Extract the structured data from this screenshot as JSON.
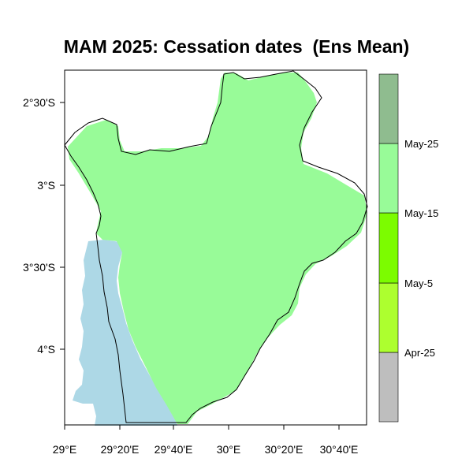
{
  "title": "MAM 2025: Cessation dates  (Ens Mean)",
  "map": {
    "x_ticks": [
      "29°E",
      "29°20'E",
      "29°40'E",
      "30°E",
      "30°20'E",
      "30°40'E"
    ],
    "y_ticks": [
      "2°30'S",
      "3°S",
      "3°30'S",
      "4°S"
    ],
    "land_color": "#98fb98",
    "lake_color": "#add8e6",
    "border_color": "#000000"
  },
  "legend": {
    "labels": [
      "Apr-25",
      "May-5",
      "May-15",
      "May-25"
    ],
    "colors": [
      "#bebebe",
      "#adff2f",
      "#7cfc00",
      "#98fb98",
      "#8fbc8f"
    ]
  }
}
